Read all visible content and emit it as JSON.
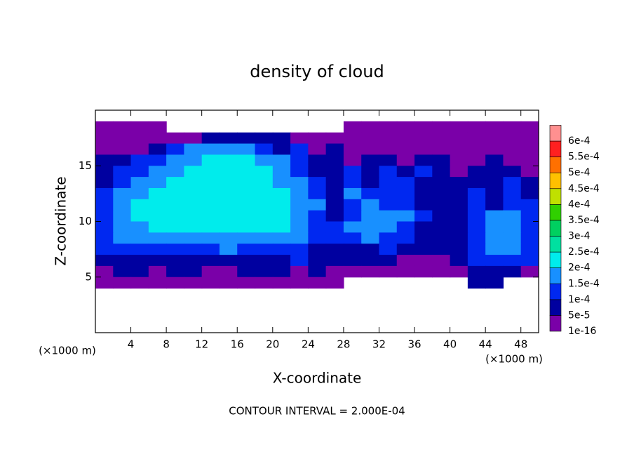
{
  "chart_data": {
    "type": "contour",
    "title": "density of cloud",
    "x_label": "X-coordinate",
    "y_label": "Z-coordinate",
    "x_unit_label": "(×1000 m)",
    "y_unit_label": "(×1000 m)",
    "footer": "CONTOUR INTERVAL = 2.000E-04",
    "xlim": [
      0,
      50
    ],
    "ylim": [
      0,
      20
    ],
    "xticks": [
      4,
      8,
      12,
      16,
      20,
      24,
      28,
      32,
      36,
      40,
      44,
      48
    ],
    "yticks": [
      5,
      10,
      15
    ],
    "x": [
      1,
      3,
      5,
      7,
      9,
      11,
      13,
      15,
      17,
      19,
      21,
      23,
      25,
      27,
      29,
      31,
      33,
      35,
      37,
      39,
      41,
      43,
      45,
      47,
      49
    ],
    "z": [
      18.5,
      17.5,
      16.5,
      15.5,
      14.5,
      13.5,
      12.5,
      11.5,
      10.5,
      9.5,
      8.5,
      7.5,
      6.5,
      5.5,
      4.5
    ],
    "levels": [
      {
        "value": 1e-16,
        "label": "1e-16"
      },
      {
        "value": 5e-05,
        "label": "5e-5"
      },
      {
        "value": 0.0001,
        "label": "1e-4"
      },
      {
        "value": 0.00015,
        "label": "1.5e-4"
      },
      {
        "value": 0.0002,
        "label": "2e-4"
      },
      {
        "value": 0.00025,
        "label": "2.5e-4"
      },
      {
        "value": 0.0003,
        "label": "3e-4"
      },
      {
        "value": 0.00035,
        "label": "3.5e-4"
      },
      {
        "value": 0.0004,
        "label": "4e-4"
      },
      {
        "value": 0.00045,
        "label": "4.5e-4"
      },
      {
        "value": 0.0005,
        "label": "5e-4"
      },
      {
        "value": 0.00055,
        "label": "5.5e-4"
      },
      {
        "value": 0.0006,
        "label": "6e-4"
      }
    ],
    "colors": [
      "#7a00a8",
      "#0000a0",
      "#0028f0",
      "#1890ff",
      "#00ecec",
      "#00e0a0",
      "#00d060",
      "#30d000",
      "#c0e000",
      "#ffc000",
      "#ff7000",
      "#ff2020"
    ],
    "top_color": "#ff9090",
    "values": [
      [
        2e-05,
        2e-05,
        2e-05,
        2e-05,
        null,
        null,
        null,
        null,
        null,
        null,
        null,
        null,
        null,
        null,
        2e-05,
        2e-05,
        2e-05,
        2e-05,
        2e-05,
        2e-05,
        2e-05,
        2e-05,
        2e-05,
        2e-05,
        2e-05
      ],
      [
        2e-05,
        2e-05,
        2e-05,
        2e-05,
        2e-05,
        2e-05,
        7e-05,
        7e-05,
        7e-05,
        7e-05,
        7e-05,
        2e-05,
        2e-05,
        2e-05,
        2e-05,
        2e-05,
        2e-05,
        2e-05,
        2e-05,
        2e-05,
        2e-05,
        2e-05,
        2e-05,
        2e-05,
        2e-05
      ],
      [
        2e-05,
        2e-05,
        2e-05,
        7e-05,
        0.00012,
        0.00017,
        0.00017,
        0.00017,
        0.00017,
        0.00012,
        7e-05,
        0.00012,
        2e-05,
        7e-05,
        2e-05,
        2e-05,
        2e-05,
        2e-05,
        2e-05,
        2e-05,
        2e-05,
        2e-05,
        2e-05,
        2e-05,
        2e-05
      ],
      [
        7e-05,
        7e-05,
        0.00012,
        0.00012,
        0.00017,
        0.00017,
        0.00021,
        0.00021,
        0.00021,
        0.00017,
        0.00017,
        0.00012,
        7e-05,
        7e-05,
        2e-05,
        7e-05,
        7e-05,
        2e-05,
        7e-05,
        7e-05,
        2e-05,
        2e-05,
        7e-05,
        2e-05,
        2e-05
      ],
      [
        7e-05,
        0.00012,
        0.00012,
        0.00017,
        0.00017,
        0.00021,
        0.00021,
        0.00021,
        0.00021,
        0.00021,
        0.00017,
        0.00012,
        7e-05,
        7e-05,
        0.00012,
        7e-05,
        0.00012,
        7e-05,
        0.00012,
        7e-05,
        2e-05,
        7e-05,
        7e-05,
        7e-05,
        2e-05
      ],
      [
        7e-05,
        0.00012,
        0.00017,
        0.00017,
        0.00021,
        0.00021,
        0.00021,
        0.00021,
        0.00021,
        0.00021,
        0.00017,
        0.00017,
        0.00012,
        7e-05,
        0.00012,
        7e-05,
        0.00012,
        0.00012,
        7e-05,
        7e-05,
        7e-05,
        7e-05,
        7e-05,
        0.00012,
        7e-05
      ],
      [
        0.00012,
        0.00017,
        0.00017,
        0.00021,
        0.00021,
        0.00021,
        0.00021,
        0.00021,
        0.00021,
        0.00021,
        0.00021,
        0.00017,
        0.00012,
        7e-05,
        0.00017,
        0.00012,
        0.00012,
        0.00012,
        7e-05,
        7e-05,
        7e-05,
        0.00012,
        7e-05,
        0.00012,
        7e-05
      ],
      [
        0.00012,
        0.00017,
        0.00021,
        0.00021,
        0.00021,
        0.00021,
        0.00021,
        0.00021,
        0.00021,
        0.00021,
        0.00021,
        0.00017,
        0.00017,
        7e-05,
        0.00012,
        0.00017,
        0.00012,
        0.00012,
        7e-05,
        7e-05,
        7e-05,
        0.00012,
        7e-05,
        0.00012,
        0.00012
      ],
      [
        0.00012,
        0.00017,
        0.00021,
        0.00021,
        0.00021,
        0.00021,
        0.00021,
        0.00021,
        0.00021,
        0.00021,
        0.00021,
        0.00017,
        0.00012,
        7e-05,
        0.00012,
        0.00017,
        0.00017,
        0.00017,
        0.00012,
        7e-05,
        7e-05,
        0.00012,
        0.00017,
        0.00017,
        0.00012
      ],
      [
        0.00012,
        0.00017,
        0.00017,
        0.00021,
        0.00021,
        0.00021,
        0.00021,
        0.00021,
        0.00021,
        0.00021,
        0.00021,
        0.00017,
        0.00012,
        0.00012,
        0.00017,
        0.00017,
        0.00017,
        0.00012,
        7e-05,
        7e-05,
        7e-05,
        0.00012,
        0.00017,
        0.00017,
        0.00012
      ],
      [
        0.00012,
        0.00017,
        0.00017,
        0.00017,
        0.00017,
        0.00017,
        0.00017,
        0.00017,
        0.00017,
        0.00017,
        0.00017,
        0.00017,
        0.00012,
        0.00012,
        0.00012,
        0.00017,
        0.00012,
        0.00012,
        7e-05,
        7e-05,
        7e-05,
        0.00012,
        0.00017,
        0.00017,
        0.00012
      ],
      [
        0.00012,
        0.00012,
        0.00012,
        0.00012,
        0.00012,
        0.00012,
        0.00012,
        0.00017,
        0.00012,
        0.00012,
        0.00012,
        0.00012,
        7e-05,
        7e-05,
        7e-05,
        7e-05,
        0.00012,
        7e-05,
        7e-05,
        7e-05,
        7e-05,
        0.00012,
        0.00017,
        0.00017,
        0.00012
      ],
      [
        7e-05,
        7e-05,
        7e-05,
        7e-05,
        7e-05,
        7e-05,
        7e-05,
        7e-05,
        7e-05,
        7e-05,
        7e-05,
        0.00012,
        7e-05,
        7e-05,
        7e-05,
        7e-05,
        7e-05,
        2e-05,
        2e-05,
        2e-05,
        7e-05,
        0.00012,
        0.00012,
        0.00012,
        0.00012
      ],
      [
        2e-05,
        7e-05,
        7e-05,
        2e-05,
        7e-05,
        7e-05,
        2e-05,
        2e-05,
        7e-05,
        7e-05,
        7e-05,
        2e-05,
        7e-05,
        2e-05,
        2e-05,
        2e-05,
        2e-05,
        2e-05,
        2e-05,
        2e-05,
        2e-05,
        7e-05,
        7e-05,
        7e-05,
        2e-05
      ],
      [
        2e-05,
        2e-05,
        2e-05,
        2e-05,
        2e-05,
        2e-05,
        2e-05,
        2e-05,
        2e-05,
        2e-05,
        2e-05,
        2e-05,
        2e-05,
        2e-05,
        null,
        null,
        null,
        null,
        null,
        null,
        null,
        7e-05,
        7e-05,
        null,
        null
      ]
    ]
  }
}
